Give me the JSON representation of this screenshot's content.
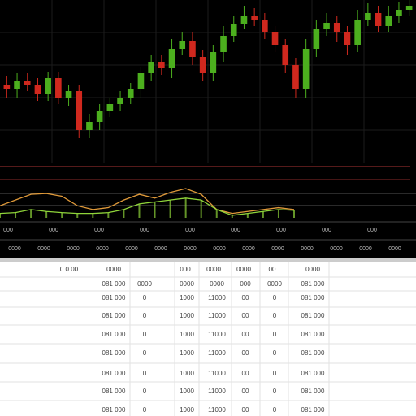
{
  "chart_data": {
    "type": "candlestick",
    "ylim": [
      0,
      100
    ],
    "up_color": "#4caf1e",
    "down_color": "#d0281e",
    "open": [
      48,
      45,
      50,
      48,
      42,
      52,
      40,
      44,
      20,
      25,
      32,
      36,
      40,
      45,
      55,
      62,
      58,
      70,
      75,
      65,
      55,
      68,
      78,
      85,
      90,
      88,
      80,
      72,
      60,
      45,
      70,
      82,
      86,
      80,
      72,
      88,
      92,
      84,
      90,
      94
    ],
    "close": [
      45,
      50,
      48,
      42,
      52,
      40,
      44,
      20,
      25,
      32,
      36,
      40,
      45,
      55,
      62,
      58,
      70,
      75,
      65,
      55,
      68,
      78,
      85,
      90,
      88,
      80,
      72,
      60,
      45,
      70,
      82,
      86,
      80,
      72,
      88,
      92,
      84,
      90,
      94,
      96
    ],
    "high": [
      53,
      55,
      55,
      52,
      56,
      56,
      48,
      48,
      30,
      36,
      40,
      44,
      49,
      59,
      66,
      66,
      76,
      80,
      80,
      69,
      72,
      84,
      90,
      96,
      95,
      92,
      84,
      76,
      64,
      76,
      88,
      92,
      90,
      84,
      94,
      98,
      96,
      96,
      99,
      100
    ],
    "low": [
      40,
      40,
      44,
      38,
      38,
      36,
      35,
      15,
      15,
      20,
      28,
      32,
      36,
      40,
      50,
      54,
      52,
      66,
      60,
      50,
      50,
      62,
      74,
      82,
      84,
      76,
      68,
      55,
      40,
      40,
      65,
      78,
      74,
      66,
      68,
      84,
      80,
      80,
      86,
      90
    ],
    "indicator": {
      "ylim": [
        0,
        100
      ],
      "series": [
        {
          "color": "#e09a3a",
          "values": [
            40,
            55,
            70,
            72,
            65,
            40,
            30,
            35,
            55,
            70,
            60,
            75,
            85,
            70,
            30,
            20,
            25,
            30,
            35,
            30
          ]
        },
        {
          "color": "#8fd43a",
          "values": [
            20,
            22,
            30,
            25,
            22,
            20,
            20,
            22,
            30,
            45,
            50,
            55,
            60,
            55,
            30,
            15,
            20,
            25,
            30,
            28
          ]
        }
      ]
    },
    "axis_labels": [
      "000",
      "000",
      "000",
      "000",
      "000",
      "000",
      "000",
      "000",
      "000"
    ],
    "axis_labels_2": [
      "0000",
      "0000",
      "0000",
      "0000",
      "0000",
      "0000",
      "0000",
      "0000",
      "0000",
      "0000",
      "0000",
      "0000",
      "0000",
      "0000"
    ]
  },
  "table": {
    "header": [
      "0 0 00",
      "0000",
      "000",
      "0000",
      "0000",
      "00",
      "0000"
    ],
    "rows": [
      [
        "081 000",
        "0000",
        "0000",
        "0000",
        "000",
        "0000",
        "081 000"
      ],
      [
        "081 000",
        "0",
        "1000",
        "11000",
        "00",
        "0",
        "081 000"
      ],
      [
        "081 000",
        "0",
        "1000",
        "11000",
        "00",
        "0",
        "081 000"
      ],
      [
        "081 000",
        "0",
        "1000",
        "11000",
        "00",
        "0",
        "081 000"
      ],
      [
        "081 000",
        "0",
        "1000",
        "11000",
        "00",
        "0",
        "081 000"
      ],
      [
        "081 000",
        "0",
        "1000",
        "11000",
        "00",
        "0",
        "081 000"
      ],
      [
        "081 000",
        "0",
        "1000",
        "11000",
        "00",
        "0",
        "081 000"
      ],
      [
        "081 000",
        "0",
        "1000",
        "11000",
        "00",
        "0",
        "081 000"
      ]
    ]
  }
}
